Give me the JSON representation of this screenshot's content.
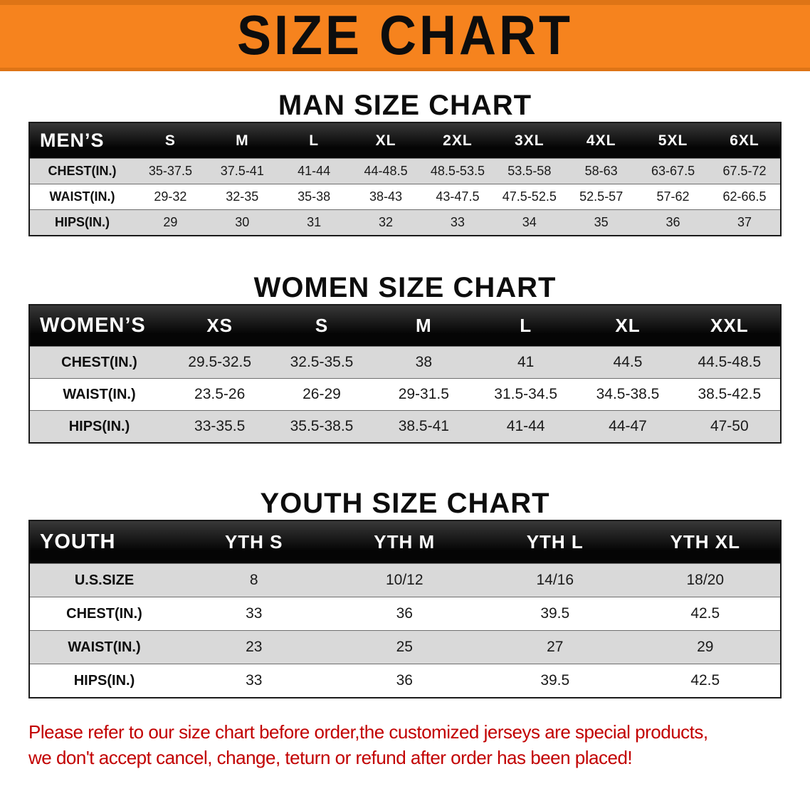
{
  "banner": {
    "title": "SIZE CHART"
  },
  "colors": {
    "banner_bg": "#f6831e",
    "table_header_bg": "#111111",
    "row_stripe": "#d9d9d9",
    "notice_red": "#c20000"
  },
  "men": {
    "heading": "MAN SIZE CHART",
    "header_label": "MEN’S",
    "columns": [
      "S",
      "M",
      "L",
      "XL",
      "2XL",
      "3XL",
      "4XL",
      "5XL",
      "6XL"
    ],
    "rows": [
      {
        "label": "CHEST(IN.)",
        "values": [
          "35-37.5",
          "37.5-41",
          "41-44",
          "44-48.5",
          "48.5-53.5",
          "53.5-58",
          "58-63",
          "63-67.5",
          "67.5-72"
        ]
      },
      {
        "label": "WAIST(IN.)",
        "values": [
          "29-32",
          "32-35",
          "35-38",
          "38-43",
          "43-47.5",
          "47.5-52.5",
          "52.5-57",
          "57-62",
          "62-66.5"
        ]
      },
      {
        "label": "HIPS(IN.)",
        "values": [
          "29",
          "30",
          "31",
          "32",
          "33",
          "34",
          "35",
          "36",
          "37"
        ]
      }
    ]
  },
  "women": {
    "heading": "WOMEN SIZE CHART",
    "header_label": "WOMEN’S",
    "columns": [
      "XS",
      "S",
      "M",
      "L",
      "XL",
      "XXL"
    ],
    "rows": [
      {
        "label": "CHEST(IN.)",
        "values": [
          "29.5-32.5",
          "32.5-35.5",
          "38",
          "41",
          "44.5",
          "44.5-48.5"
        ]
      },
      {
        "label": "WAIST(IN.)",
        "values": [
          "23.5-26",
          "26-29",
          "29-31.5",
          "31.5-34.5",
          "34.5-38.5",
          "38.5-42.5"
        ]
      },
      {
        "label": "HIPS(IN.)",
        "values": [
          "33-35.5",
          "35.5-38.5",
          "38.5-41",
          "41-44",
          "44-47",
          "47-50"
        ]
      }
    ]
  },
  "youth": {
    "heading": "YOUTH SIZE CHART",
    "header_label": "YOUTH",
    "columns": [
      "YTH S",
      "YTH M",
      "YTH L",
      "YTH XL"
    ],
    "rows": [
      {
        "label": "U.S.SIZE",
        "values": [
          "8",
          "10/12",
          "14/16",
          "18/20"
        ]
      },
      {
        "label": "CHEST(IN.)",
        "values": [
          "33",
          "36",
          "39.5",
          "42.5"
        ]
      },
      {
        "label": "WAIST(IN.)",
        "values": [
          "23",
          "25",
          "27",
          "29"
        ]
      },
      {
        "label": "HIPS(IN.)",
        "values": [
          "33",
          "36",
          "39.5",
          "42.5"
        ]
      }
    ]
  },
  "notice": {
    "line1": "Please refer to our size chart before order,the customized jerseys are special products,",
    "line2": "we don't accept cancel, change, teturn or refund after order has been placed!"
  }
}
